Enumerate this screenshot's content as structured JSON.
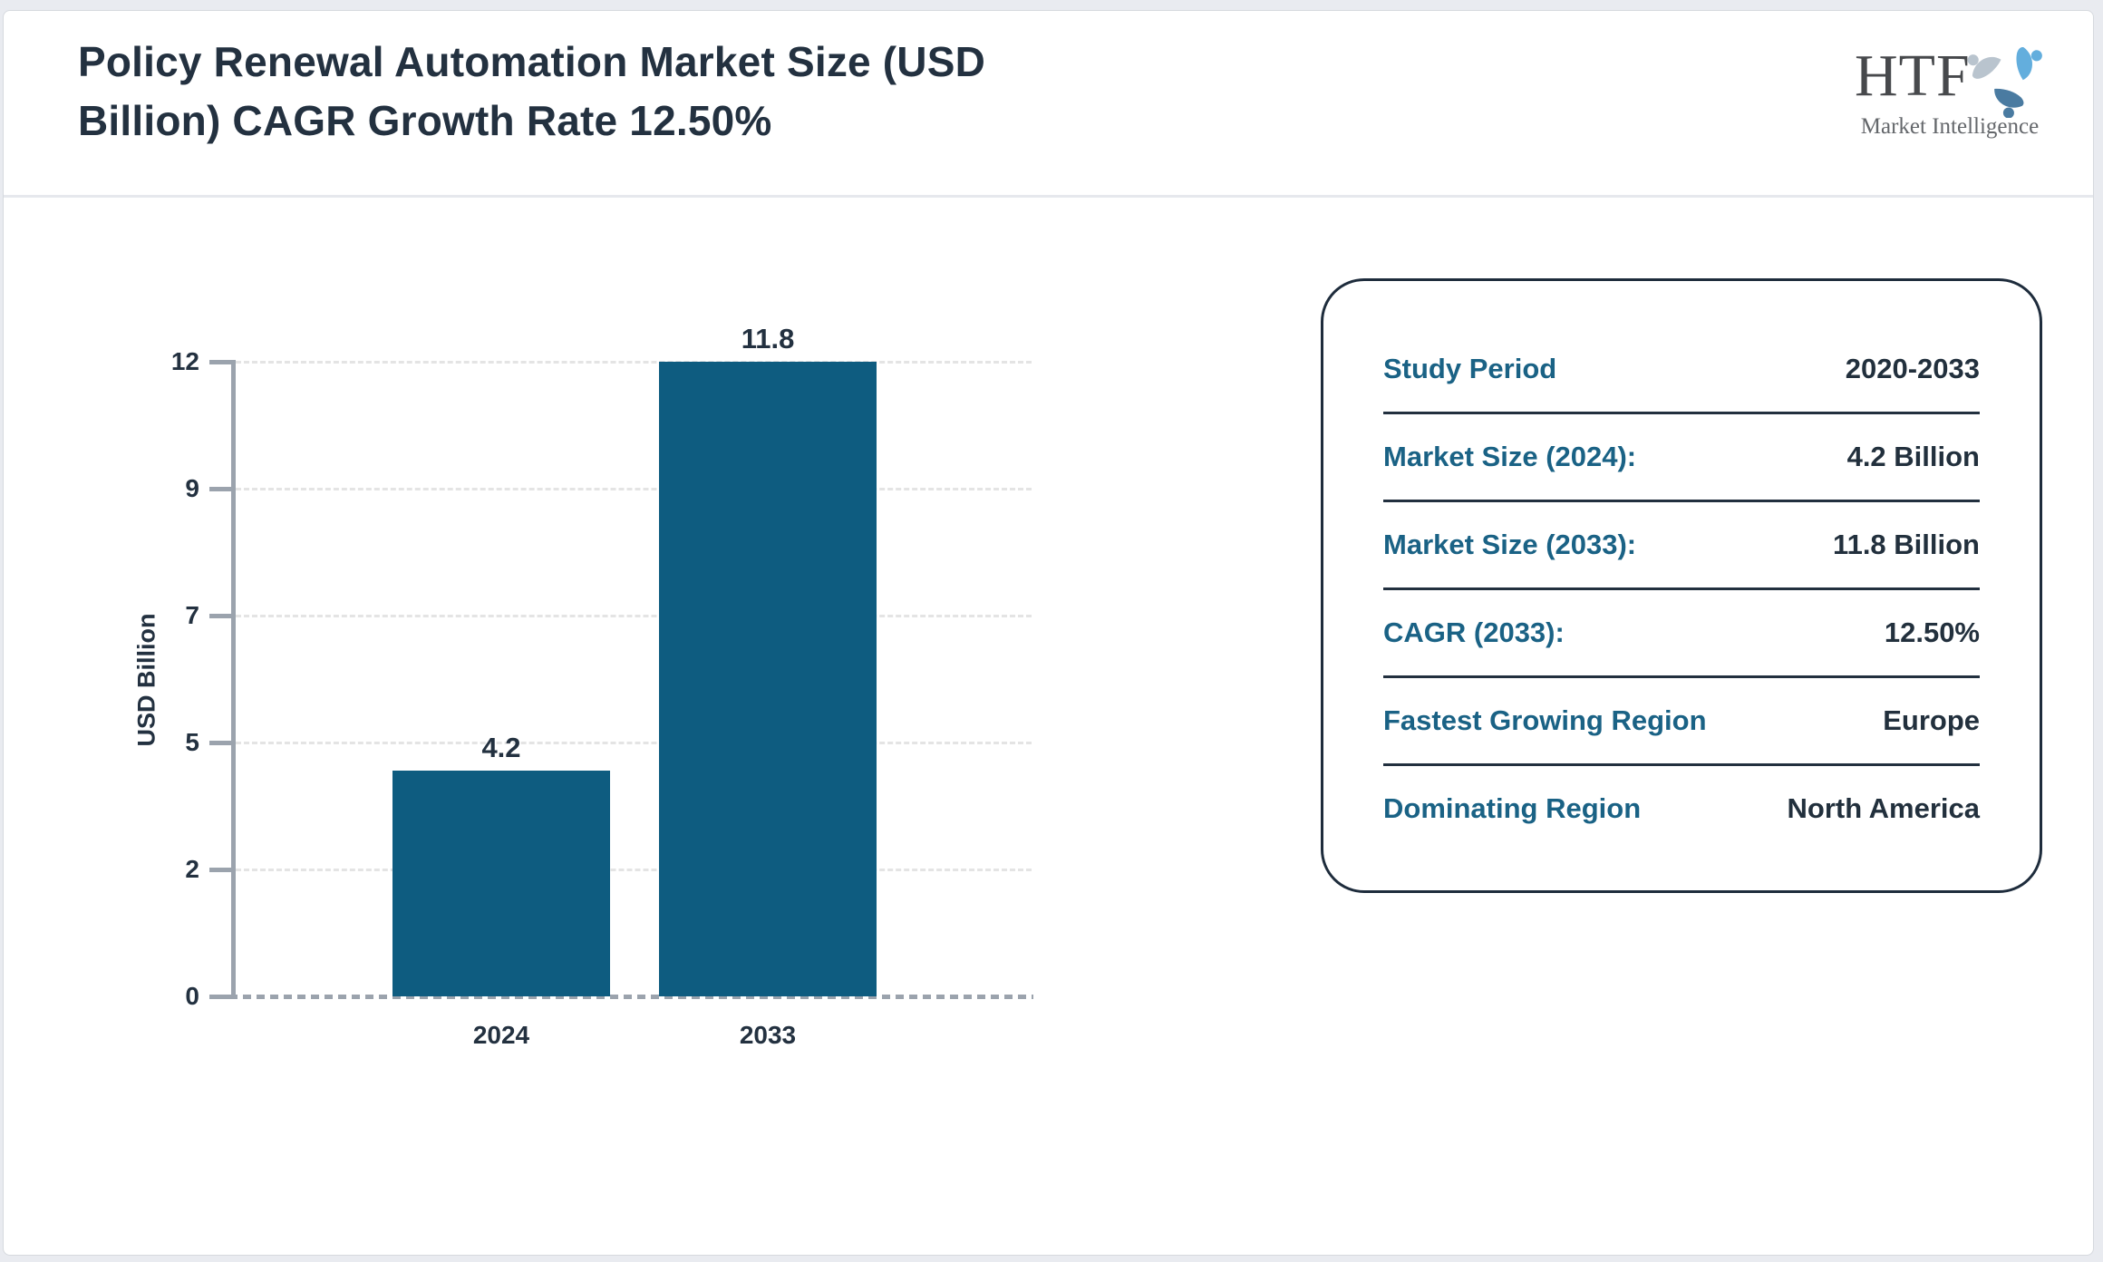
{
  "header": {
    "title_line1": "Policy Renewal Automation Market Size (USD",
    "title_line2": "Billion) CAGR Growth Rate 12.50%"
  },
  "logo": {
    "name": "HTF",
    "subtitle": "Market Intelligence"
  },
  "chart_data": {
    "type": "bar",
    "title": "Policy Renewal Automation Market Size (USD Billion) CAGR Growth Rate 12.50%",
    "categories": [
      "2024",
      "2033"
    ],
    "values": [
      4.2,
      11.8
    ],
    "bar_labels": [
      "4.2",
      "11.8"
    ],
    "xlabel": "",
    "ylabel": "USD Billion",
    "ytick_labels": [
      "0",
      "2",
      "5",
      "7",
      "9",
      "12"
    ],
    "ylim": [
      0,
      11.8
    ],
    "grid": "horizontal-dashed",
    "legend": "none",
    "bar_color": "#0e5c80",
    "cagr": "12.50%"
  },
  "info_card": {
    "rows": [
      {
        "label": "Study Period",
        "value": "2020-2033"
      },
      {
        "label": "Market Size (2024):",
        "value": "4.2 Billion"
      },
      {
        "label": "Market Size (2033):",
        "value": "11.8 Billion"
      },
      {
        "label": "CAGR (2033):",
        "value": "12.50%"
      },
      {
        "label": "Fastest Growing Region",
        "value": "Europe"
      },
      {
        "label": "Dominating Region",
        "value": "North America"
      }
    ]
  }
}
